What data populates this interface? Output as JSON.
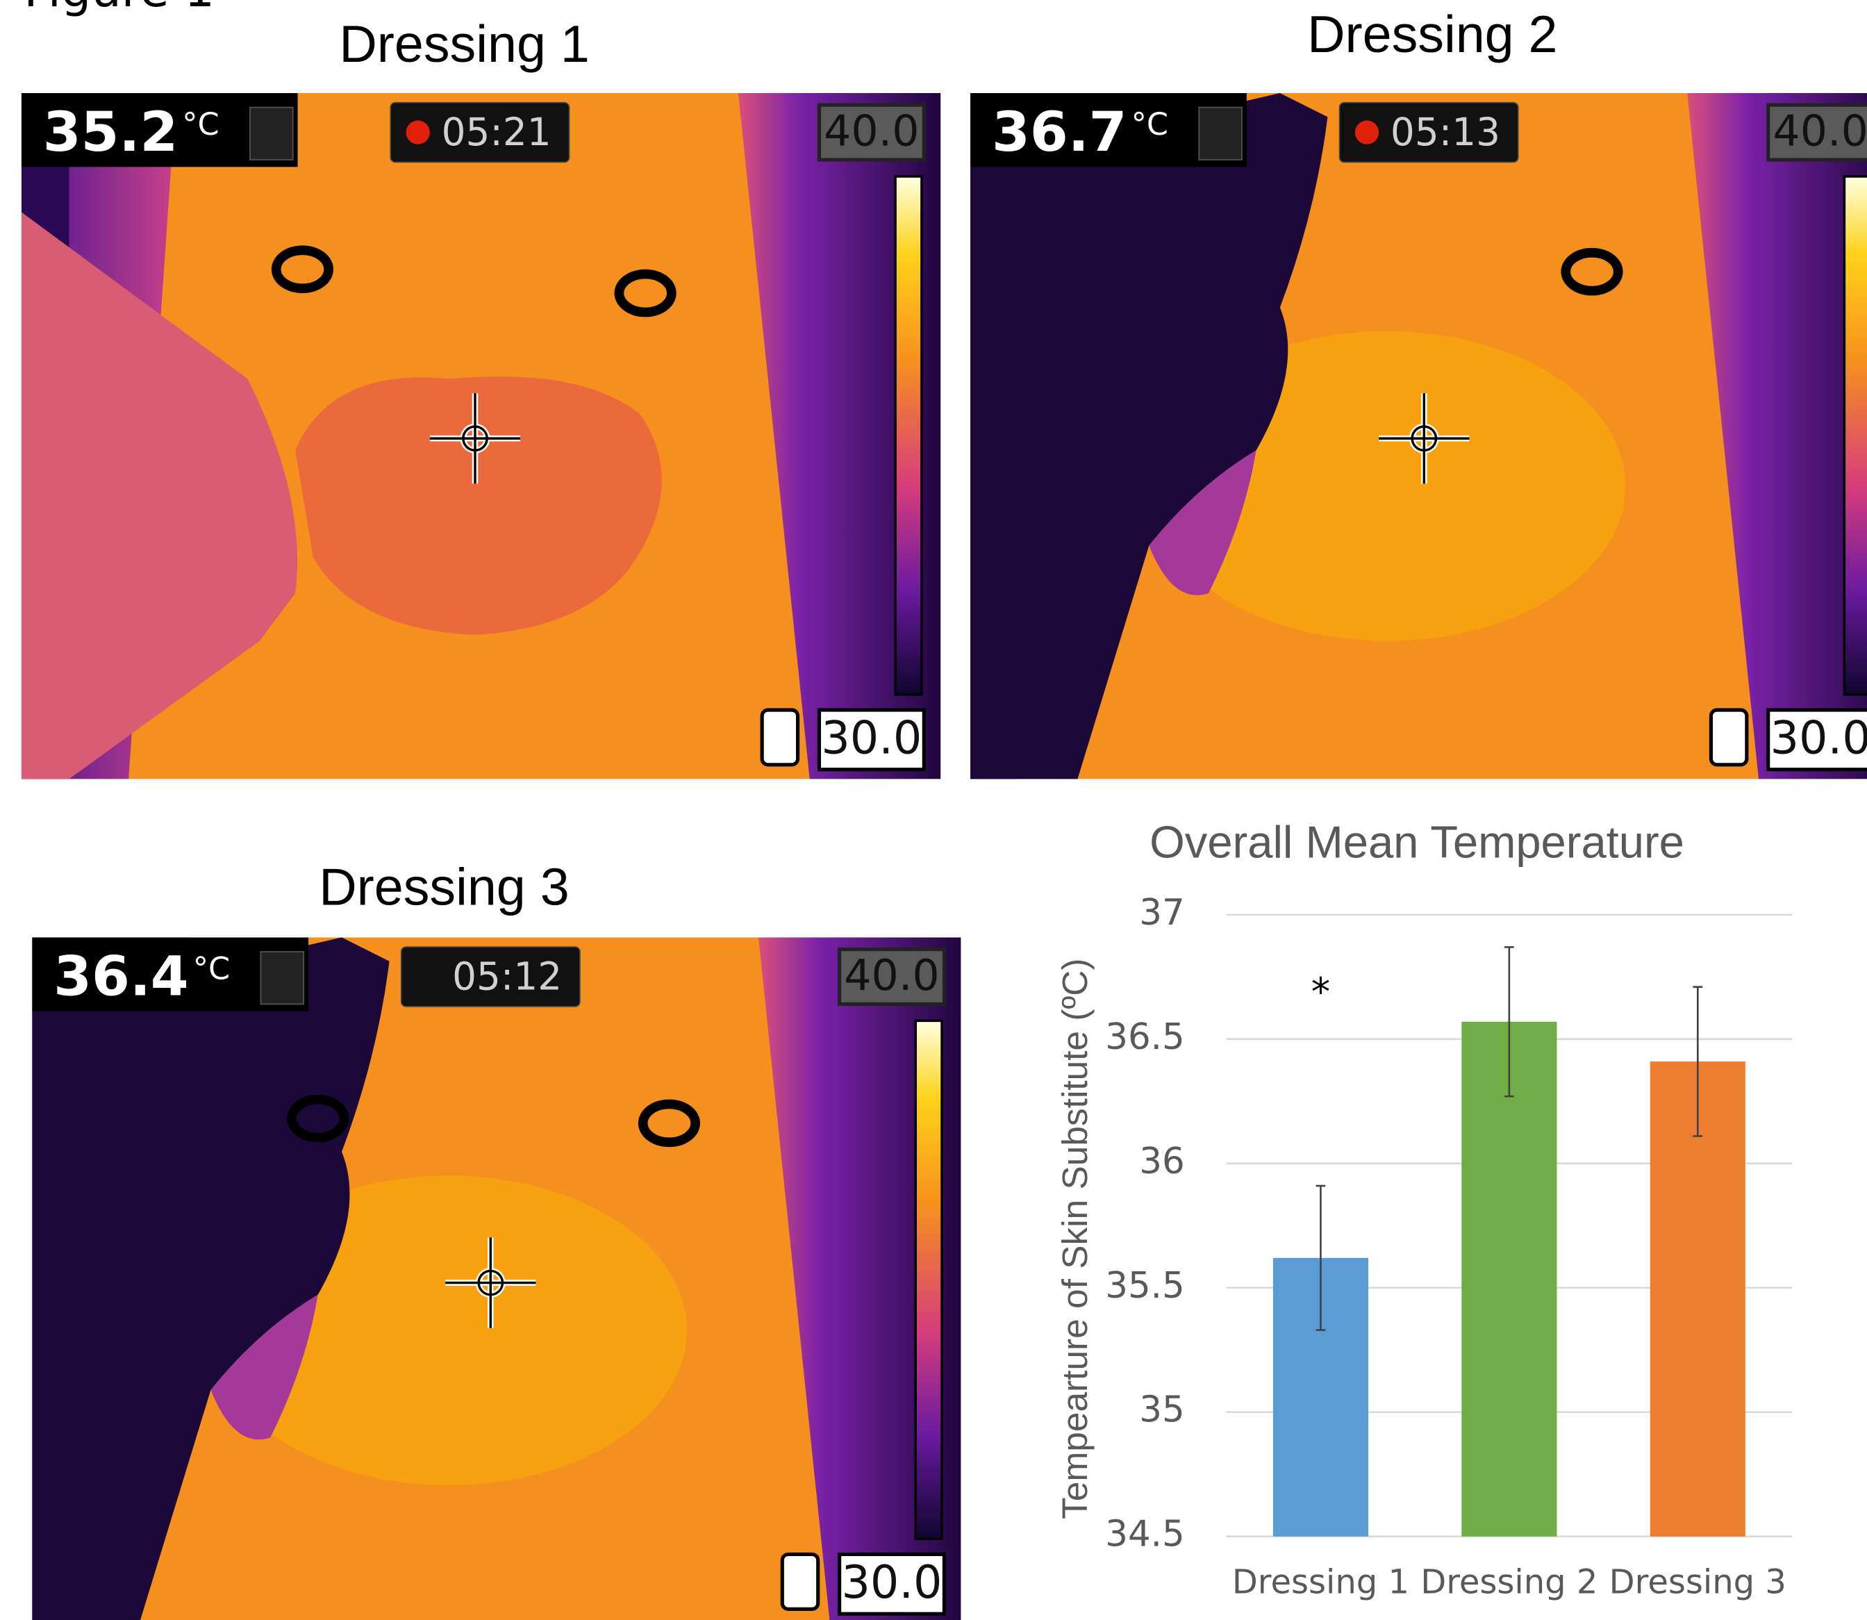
{
  "figure_label": "Figure 1",
  "thermal_images": [
    {
      "title": "Dressing 1",
      "temperature": "35.2",
      "unit": "°C",
      "timer": "05:21",
      "recording": true,
      "scale_max": "40.0",
      "scale_min": "30.0"
    },
    {
      "title": "Dressing 2",
      "temperature": "36.7",
      "unit": "°C",
      "timer": "05:13",
      "recording": true,
      "scale_max": "40.0",
      "scale_min": "30.0"
    },
    {
      "title": "Dressing 3",
      "temperature": "36.4",
      "unit": "°C",
      "timer": "05:12",
      "recording": false,
      "scale_max": "40.0",
      "scale_min": "30.0"
    }
  ],
  "chart_data": {
    "type": "bar",
    "title": "Overall Mean Temperature",
    "y_label": "Tempearture of Skin Substitute (ºC)",
    "categories": [
      "Dressing 1",
      "Dressing 2",
      "Dressing 3"
    ],
    "values": [
      35.62,
      36.57,
      36.41
    ],
    "errors": [
      0.29,
      0.3,
      0.3
    ],
    "colors": [
      "#5b9bd5",
      "#70ad47",
      "#ed7d31"
    ],
    "annotations": [
      {
        "text": "*",
        "category": "Dressing 1"
      }
    ],
    "ylim": [
      34.5,
      37
    ],
    "yticks": [
      34.5,
      35,
      35.5,
      36,
      36.5,
      37
    ],
    "grid": true
  }
}
